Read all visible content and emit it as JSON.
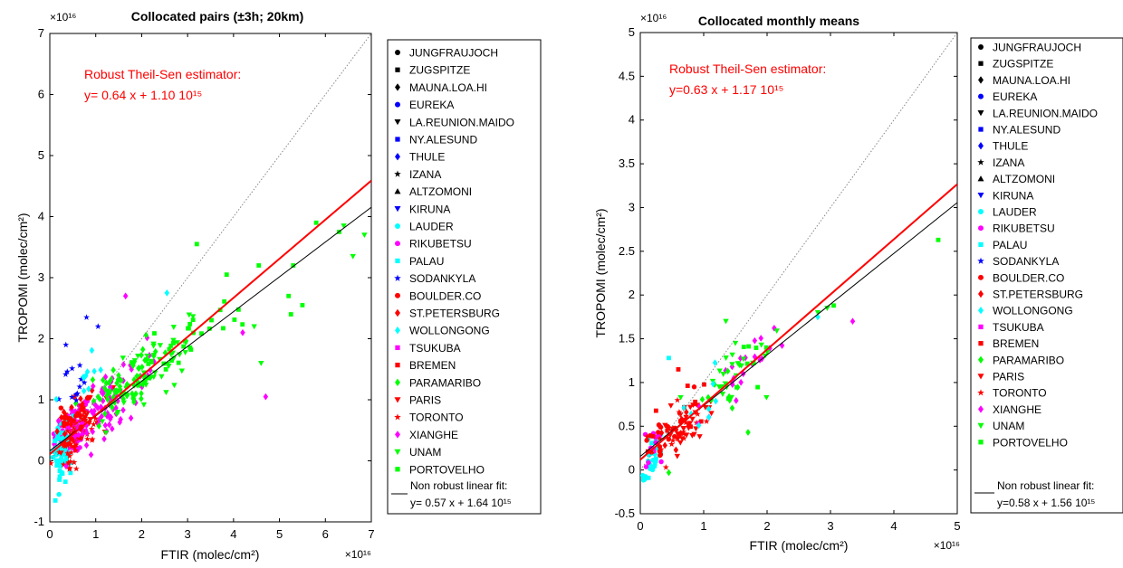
{
  "chart_data": [
    {
      "type": "scatter",
      "title": "Collocated pairs (±3h; 20km)",
      "xlabel": "FTIR (molec/cm²)",
      "ylabel": "TROPOMI (molec/cm²)",
      "exponent_label": "×10¹⁶",
      "xlim": [
        0,
        7
      ],
      "ylim": [
        -1,
        7
      ],
      "xticks": [
        0,
        1,
        2,
        3,
        4,
        5,
        6,
        7
      ],
      "yticks": [
        -1,
        0,
        1,
        2,
        3,
        4,
        5,
        6,
        7
      ],
      "xtick_labels": [
        "0",
        "1",
        "2",
        "3",
        "4",
        "5",
        "6",
        "7"
      ],
      "ytick_labels": [
        "-1",
        "0",
        "1",
        "2",
        "3",
        "4",
        "5",
        "6",
        "7"
      ],
      "annotation_line1": "Robust Theil-Sen estimator:",
      "annotation_line2": "y= 0.64 x + 1.10 10¹⁵",
      "robust_fit": {
        "slope": 0.64,
        "intercept": 0.11
      },
      "nonrobust_fit": {
        "slope": 0.57,
        "intercept": 0.164
      },
      "legend_fit_line1": "Non robust linear fit:",
      "legend_fit_line2": "y= 0.57 x + 1.64 10¹⁵",
      "clusters": [
        {
          "series": "RIKUBETSU",
          "cx": 0.5,
          "cy": 0.5,
          "sx": 0.35,
          "sy": 0.35,
          "n": 90
        },
        {
          "series": "PALAU",
          "cx": 0.25,
          "cy": 0.1,
          "sx": 0.15,
          "sy": 0.35,
          "n": 45
        },
        {
          "series": "LAUDER",
          "cx": 0.25,
          "cy": 0.3,
          "sx": 0.15,
          "sy": 0.3,
          "n": 30
        },
        {
          "series": "TORONTO",
          "cx": 0.6,
          "cy": 0.4,
          "sx": 0.4,
          "sy": 0.35,
          "n": 50
        },
        {
          "series": "PARIS",
          "cx": 0.8,
          "cy": 0.7,
          "sx": 0.4,
          "sy": 0.3,
          "n": 25
        },
        {
          "series": "ST.PETERSBURG",
          "cx": 0.5,
          "cy": 0.6,
          "sx": 0.3,
          "sy": 0.3,
          "n": 20
        },
        {
          "series": "XIANGHE",
          "cx": 1.3,
          "cy": 1.0,
          "sx": 0.8,
          "sy": 0.45,
          "n": 80
        },
        {
          "series": "PARAMARIBO",
          "cx": 1.6,
          "cy": 1.2,
          "sx": 0.6,
          "sy": 0.35,
          "n": 70
        },
        {
          "series": "UNAM",
          "cx": 2.2,
          "cy": 1.5,
          "sx": 0.7,
          "sy": 0.4,
          "n": 45
        },
        {
          "series": "PORTOVELHO",
          "cx": 2.8,
          "cy": 1.9,
          "sx": 1.1,
          "sy": 0.45,
          "n": 35
        },
        {
          "series": "SODANKYLA",
          "cx": 0.5,
          "cy": 1.3,
          "sx": 0.3,
          "sy": 0.4,
          "n": 12
        },
        {
          "series": "WOLLONGONG",
          "cx": 0.8,
          "cy": 1.4,
          "sx": 0.4,
          "sy": 0.3,
          "n": 10
        },
        {
          "series": "BOULDER.CO",
          "cx": 0.5,
          "cy": 0.7,
          "sx": 0.3,
          "sy": 0.3,
          "n": 18
        }
      ],
      "points": [
        {
          "series": "UNAM",
          "x": 6.4,
          "y": 3.85
        },
        {
          "series": "UNAM",
          "x": 6.85,
          "y": 3.7
        },
        {
          "series": "UNAM",
          "x": 6.6,
          "y": 3.35
        },
        {
          "series": "PORTOVELHO",
          "x": 5.8,
          "y": 3.9
        },
        {
          "series": "PORTOVELHO",
          "x": 6.3,
          "y": 3.75
        },
        {
          "series": "PORTOVELHO",
          "x": 5.3,
          "y": 3.2
        },
        {
          "series": "PORTOVELHO",
          "x": 5.5,
          "y": 2.55
        },
        {
          "series": "PORTOVELHO",
          "x": 5.25,
          "y": 2.4
        },
        {
          "series": "PORTOVELHO",
          "x": 5.2,
          "y": 2.7
        },
        {
          "series": "PORTOVELHO",
          "x": 4.55,
          "y": 3.2
        },
        {
          "series": "PORTOVELHO",
          "x": 3.2,
          "y": 3.55
        },
        {
          "series": "XIANGHE",
          "x": 4.7,
          "y": 1.05
        },
        {
          "series": "XIANGHE",
          "x": 4.2,
          "y": 2.1
        },
        {
          "series": "UNAM",
          "x": 4.6,
          "y": 1.6
        },
        {
          "series": "UNAM",
          "x": 4.45,
          "y": 2.2
        },
        {
          "series": "SODANKYLA",
          "x": 0.8,
          "y": 2.35
        },
        {
          "series": "SODANKYLA",
          "x": 1.05,
          "y": 2.2
        },
        {
          "series": "SODANKYLA",
          "x": 0.35,
          "y": 1.9
        },
        {
          "series": "WOLLONGONG",
          "x": 2.55,
          "y": 2.75
        },
        {
          "series": "XIANGHE",
          "x": 1.65,
          "y": 2.7
        },
        {
          "series": "PORTOVELHO",
          "x": 3.85,
          "y": 3.05
        },
        {
          "series": "PALAU",
          "x": 0.12,
          "y": -0.65
        },
        {
          "series": "LAUDER",
          "x": 0.2,
          "y": -0.55
        }
      ]
    },
    {
      "type": "scatter",
      "title": "Collocated monthly means",
      "xlabel": "FTIR (molec/cm²)",
      "ylabel": "TROPOMI (molec/cm²)",
      "exponent_label": "×10¹⁶",
      "xlim": [
        0,
        5
      ],
      "ylim": [
        -0.5,
        5
      ],
      "xticks": [
        0,
        1,
        2,
        3,
        4,
        5
      ],
      "yticks": [
        -0.5,
        0,
        0.5,
        1,
        1.5,
        2,
        2.5,
        3,
        3.5,
        4,
        4.5,
        5
      ],
      "xtick_labels": [
        "0",
        "1",
        "2",
        "3",
        "4",
        "5"
      ],
      "ytick_labels": [
        "-0.5",
        "0",
        "0.5",
        "1",
        "1.5",
        "2",
        "2.5",
        "3",
        "3.5",
        "4",
        "4.5",
        "5"
      ],
      "annotation_line1": "Robust Theil-Sen estimator:",
      "annotation_line2": "y=0.63 x + 1.17 10¹⁵",
      "robust_fit": {
        "slope": 0.63,
        "intercept": 0.117
      },
      "nonrobust_fit": {
        "slope": 0.58,
        "intercept": 0.156
      },
      "legend_fit_line1": "Non robust linear fit:",
      "legend_fit_line2": "y=0.58 x + 1.56 10¹⁵",
      "clusters": [
        {
          "series": "LAUDER",
          "cx": 0.15,
          "cy": 0.1,
          "sx": 0.1,
          "sy": 0.15,
          "n": 18
        },
        {
          "series": "PALAU",
          "cx": 0.2,
          "cy": 0.15,
          "sx": 0.1,
          "sy": 0.15,
          "n": 10
        },
        {
          "series": "RIKUBETSU",
          "cx": 0.25,
          "cy": 0.3,
          "sx": 0.15,
          "sy": 0.2,
          "n": 15
        },
        {
          "series": "BOULDER.CO",
          "cx": 0.3,
          "cy": 0.35,
          "sx": 0.2,
          "sy": 0.2,
          "n": 14
        },
        {
          "series": "PARIS",
          "cx": 0.8,
          "cy": 0.55,
          "sx": 0.35,
          "sy": 0.2,
          "n": 30
        },
        {
          "series": "TORONTO",
          "cx": 0.7,
          "cy": 0.5,
          "sx": 0.3,
          "sy": 0.2,
          "n": 20
        },
        {
          "series": "ST.PETERSBURG",
          "cx": 0.5,
          "cy": 0.5,
          "sx": 0.25,
          "sy": 0.2,
          "n": 10
        },
        {
          "series": "BREMEN",
          "cx": 0.7,
          "cy": 0.7,
          "sx": 0.4,
          "sy": 0.25,
          "n": 12
        },
        {
          "series": "XIANGHE",
          "cx": 1.5,
          "cy": 1.0,
          "sx": 0.5,
          "sy": 0.3,
          "n": 22
        },
        {
          "series": "UNAM",
          "cx": 1.5,
          "cy": 1.1,
          "sx": 0.6,
          "sy": 0.3,
          "n": 22
        },
        {
          "series": "PARAMARIBO",
          "cx": 1.3,
          "cy": 0.9,
          "sx": 0.5,
          "sy": 0.3,
          "n": 10
        },
        {
          "series": "PORTOVELHO",
          "cx": 1.6,
          "cy": 1.1,
          "sx": 0.6,
          "sy": 0.3,
          "n": 10
        },
        {
          "series": "WOLLONGONG",
          "cx": 1.0,
          "cy": 0.8,
          "sx": 0.4,
          "sy": 0.25,
          "n": 8
        }
      ],
      "points": [
        {
          "series": "PORTOVELHO",
          "x": 4.7,
          "y": 2.63
        },
        {
          "series": "XIANGHE",
          "x": 3.35,
          "y": 1.7
        },
        {
          "series": "UNAM",
          "x": 1.35,
          "y": 1.7
        },
        {
          "series": "UNAM",
          "x": 1.5,
          "y": 1.45
        },
        {
          "series": "PARAMARIBO",
          "x": 1.7,
          "y": 0.43
        },
        {
          "series": "PARAMARIBO",
          "x": 0.45,
          "y": -0.03
        },
        {
          "series": "PALAU",
          "x": 0.05,
          "y": -0.08
        },
        {
          "series": "PALAU",
          "x": 0.13,
          "y": -0.09
        },
        {
          "series": "UNAM",
          "x": 2.8,
          "y": 1.8
        },
        {
          "series": "UNAM",
          "x": 2.95,
          "y": 1.85
        },
        {
          "series": "PORTOVELHO",
          "x": 3.05,
          "y": 1.88
        },
        {
          "series": "WOLLONGONG",
          "x": 2.8,
          "y": 1.75
        },
        {
          "series": "BREMEN",
          "x": 0.6,
          "y": 1.15
        },
        {
          "series": "PALAU",
          "x": 0.45,
          "y": 1.28
        },
        {
          "series": "BOULDER.CO",
          "x": 0.85,
          "y": 0.95
        }
      ]
    }
  ],
  "legend": [
    {
      "name": "JUNGFRAUJOCH",
      "color": "#000000",
      "marker": "circle"
    },
    {
      "name": "ZUGSPITZE",
      "color": "#000000",
      "marker": "square"
    },
    {
      "name": "MAUNA.LOA.HI",
      "color": "#000000",
      "marker": "diamond"
    },
    {
      "name": "EUREKA",
      "color": "#0000ff",
      "marker": "circle"
    },
    {
      "name": "LA.REUNION.MAIDO",
      "color": "#000000",
      "marker": "tri-down"
    },
    {
      "name": "NY.ALESUND",
      "color": "#0000ff",
      "marker": "square"
    },
    {
      "name": "THULE",
      "color": "#0000ff",
      "marker": "diamond"
    },
    {
      "name": "IZANA",
      "color": "#000000",
      "marker": "star"
    },
    {
      "name": "ALTZOMONI",
      "color": "#000000",
      "marker": "tri-up"
    },
    {
      "name": "KIRUNA",
      "color": "#0000ff",
      "marker": "tri-down"
    },
    {
      "name": "LAUDER",
      "color": "#00ffff",
      "marker": "circle"
    },
    {
      "name": "RIKUBETSU",
      "color": "#ff00ff",
      "marker": "circle"
    },
    {
      "name": "PALAU",
      "color": "#00ffff",
      "marker": "square"
    },
    {
      "name": "SODANKYLA",
      "color": "#0000ff",
      "marker": "star"
    },
    {
      "name": "BOULDER.CO",
      "color": "#ff0000",
      "marker": "circle"
    },
    {
      "name": "ST.PETERSBURG",
      "color": "#ff0000",
      "marker": "diamond"
    },
    {
      "name": "WOLLONGONG",
      "color": "#00ffff",
      "marker": "diamond"
    },
    {
      "name": "TSUKUBA",
      "color": "#ff00ff",
      "marker": "square"
    },
    {
      "name": "BREMEN",
      "color": "#ff0000",
      "marker": "square"
    },
    {
      "name": "PARAMARIBO",
      "color": "#00ff00",
      "marker": "diamond"
    },
    {
      "name": "PARIS",
      "color": "#ff0000",
      "marker": "tri-down"
    },
    {
      "name": "TORONTO",
      "color": "#ff0000",
      "marker": "star"
    },
    {
      "name": "XIANGHE",
      "color": "#ff00ff",
      "marker": "diamond"
    },
    {
      "name": "UNAM",
      "color": "#00ff00",
      "marker": "tri-down"
    },
    {
      "name": "PORTOVELHO",
      "color": "#00ff00",
      "marker": "square"
    }
  ],
  "colors": {
    "robust_fit": "#ff0000",
    "nonrobust_fit": "#000000",
    "one_to_one": "#888888"
  }
}
